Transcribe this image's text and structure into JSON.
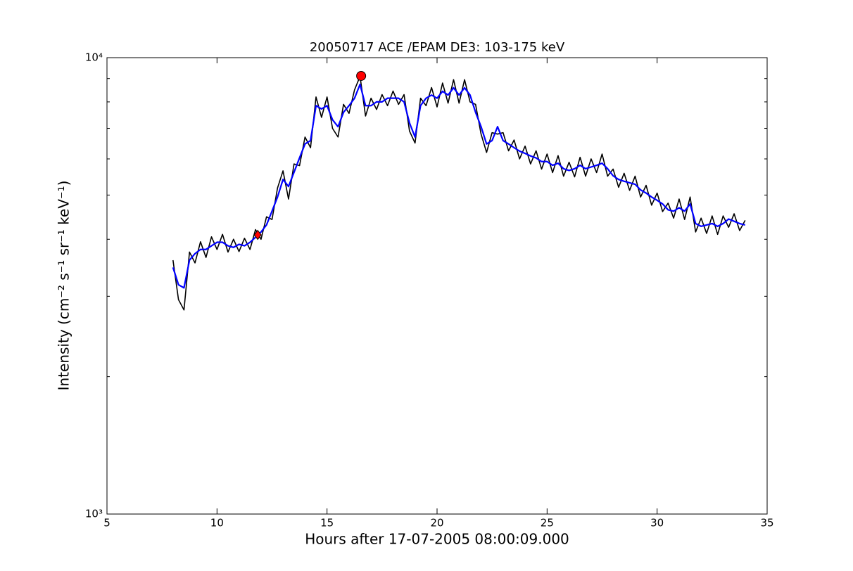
{
  "chart_data": {
    "type": "line",
    "title": "20050717 ACE /EPAM DE3: 103-175 keV",
    "xlabel": "Hours after 17-07-2005 08:00:09.000",
    "ylabel": "Intensity (cm⁻² s⁻¹ sr⁻¹ keV⁻¹)",
    "log_y": true,
    "xlim": [
      5,
      35
    ],
    "ylim": [
      1000,
      10000
    ],
    "xticks": [
      5,
      10,
      15,
      20,
      25,
      30,
      35
    ],
    "yticks": [
      {
        "value": 1000,
        "label": "10³"
      },
      {
        "value": 10000,
        "label": "10⁴"
      }
    ],
    "yminorticks": [
      2000,
      3000,
      4000,
      5000,
      6000,
      7000,
      8000,
      9000
    ],
    "x": [
      8,
      8.25,
      8.5,
      8.75,
      9,
      9.25,
      9.5,
      9.75,
      10,
      10.25,
      10.5,
      10.75,
      11,
      11.25,
      11.5,
      11.75,
      12,
      12.25,
      12.5,
      12.75,
      13,
      13.25,
      13.5,
      13.75,
      14,
      14.25,
      14.5,
      14.75,
      15,
      15.25,
      15.5,
      15.75,
      16,
      16.25,
      16.5,
      16.75,
      17,
      17.25,
      17.5,
      17.75,
      18,
      18.25,
      18.5,
      18.75,
      19,
      19.25,
      19.5,
      19.75,
      20,
      20.25,
      20.5,
      20.75,
      21,
      21.25,
      21.5,
      21.75,
      22,
      22.25,
      22.5,
      22.75,
      23,
      23.25,
      23.5,
      23.75,
      24,
      24.25,
      24.5,
      24.75,
      25,
      25.25,
      25.5,
      25.75,
      26,
      26.25,
      26.5,
      26.75,
      27,
      27.25,
      27.5,
      27.75,
      28,
      28.25,
      28.5,
      28.75,
      29,
      29.25,
      29.5,
      29.75,
      30,
      30.25,
      30.5,
      30.75,
      31,
      31.25,
      31.5,
      31.75,
      32,
      32.25,
      32.5,
      32.75,
      33,
      33.25,
      33.5,
      33.75,
      34
    ],
    "series": [
      {
        "color": "#000000",
        "values": [
          3600,
          2950,
          2800,
          3750,
          3550,
          3950,
          3650,
          4050,
          3800,
          4100,
          3750,
          4000,
          3760,
          4020,
          3800,
          4200,
          4000,
          4480,
          4420,
          5180,
          5650,
          4900,
          5850,
          5800,
          6700,
          6350,
          8200,
          7400,
          8200,
          7000,
          6700,
          7900,
          7550,
          8500,
          9100,
          7450,
          8150,
          7700,
          8300,
          7850,
          8450,
          7900,
          8300,
          6900,
          6500,
          8150,
          7850,
          8600,
          7800,
          8800,
          7950,
          8950,
          7950,
          8950,
          8000,
          7900,
          6800,
          6200,
          6850,
          6800,
          6850,
          6250,
          6600,
          6000,
          6400,
          5850,
          6250,
          5700,
          6150,
          5600,
          6100,
          5500,
          5900,
          5480,
          6050,
          5500,
          6000,
          5600,
          6150,
          5500,
          5700,
          5200,
          5580,
          5120,
          5500,
          4950,
          5250,
          4750,
          5050,
          4600,
          4800,
          4450,
          4900,
          4420,
          4950,
          4150,
          4450,
          4120,
          4500,
          4100,
          4500,
          4250,
          4550,
          4180,
          4400
        ]
      },
      {
        "color": "#0000ff",
        "values": [
          3470,
          3180,
          3130,
          3600,
          3720,
          3800,
          3800,
          3870,
          3940,
          3940,
          3870,
          3840,
          3900,
          3870,
          3940,
          4040,
          4150,
          4300,
          4610,
          4950,
          5410,
          5220,
          5610,
          6030,
          6470,
          6580,
          7850,
          7720,
          7850,
          7310,
          7060,
          7590,
          7850,
          8150,
          8740,
          7850,
          7850,
          8000,
          8000,
          8150,
          8150,
          8150,
          8000,
          7190,
          6700,
          7850,
          8150,
          8280,
          8150,
          8440,
          8280,
          8590,
          8280,
          8590,
          8280,
          7590,
          7060,
          6470,
          6580,
          7060,
          6580,
          6470,
          6350,
          6240,
          6170,
          6090,
          6030,
          5920,
          5920,
          5810,
          5870,
          5710,
          5660,
          5710,
          5810,
          5710,
          5760,
          5810,
          5870,
          5710,
          5510,
          5410,
          5360,
          5320,
          5280,
          5130,
          5050,
          4950,
          4870,
          4780,
          4640,
          4610,
          4690,
          4610,
          4780,
          4330,
          4270,
          4300,
          4330,
          4270,
          4330,
          4430,
          4380,
          4330,
          4300
        ]
      }
    ],
    "points": [
      {
        "x": 16.55,
        "y": 9120,
        "marker": "circle",
        "color": "#ff0000"
      },
      {
        "x": 11.85,
        "y": 4090,
        "marker": "diamond",
        "color": "#ff0000"
      }
    ]
  }
}
